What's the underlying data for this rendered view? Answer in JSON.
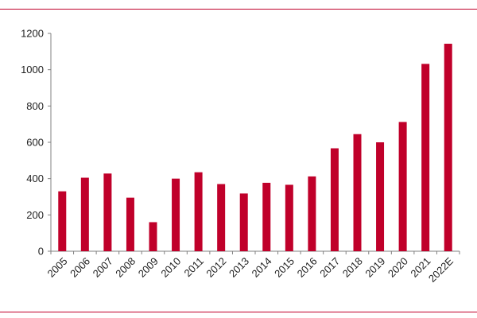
{
  "chart_data": {
    "type": "bar",
    "title": "",
    "xlabel": "",
    "ylabel": "",
    "categories": [
      "2005",
      "2006",
      "2007",
      "2008",
      "2009",
      "2010",
      "2011",
      "2012",
      "2013",
      "2014",
      "2015",
      "2016",
      "2017",
      "2018",
      "2019",
      "2020",
      "2021",
      "2022E"
    ],
    "values": [
      330,
      405,
      428,
      295,
      160,
      400,
      435,
      370,
      318,
      377,
      366,
      412,
      567,
      645,
      600,
      712,
      1032,
      1143
    ],
    "ylim": [
      0,
      1200
    ],
    "yticks": [
      0,
      200,
      400,
      600,
      800,
      1000,
      1200
    ],
    "grid": false,
    "legend": "none",
    "bar_color": "#c0002a"
  },
  "colors": {
    "accent": "#c0002a"
  }
}
